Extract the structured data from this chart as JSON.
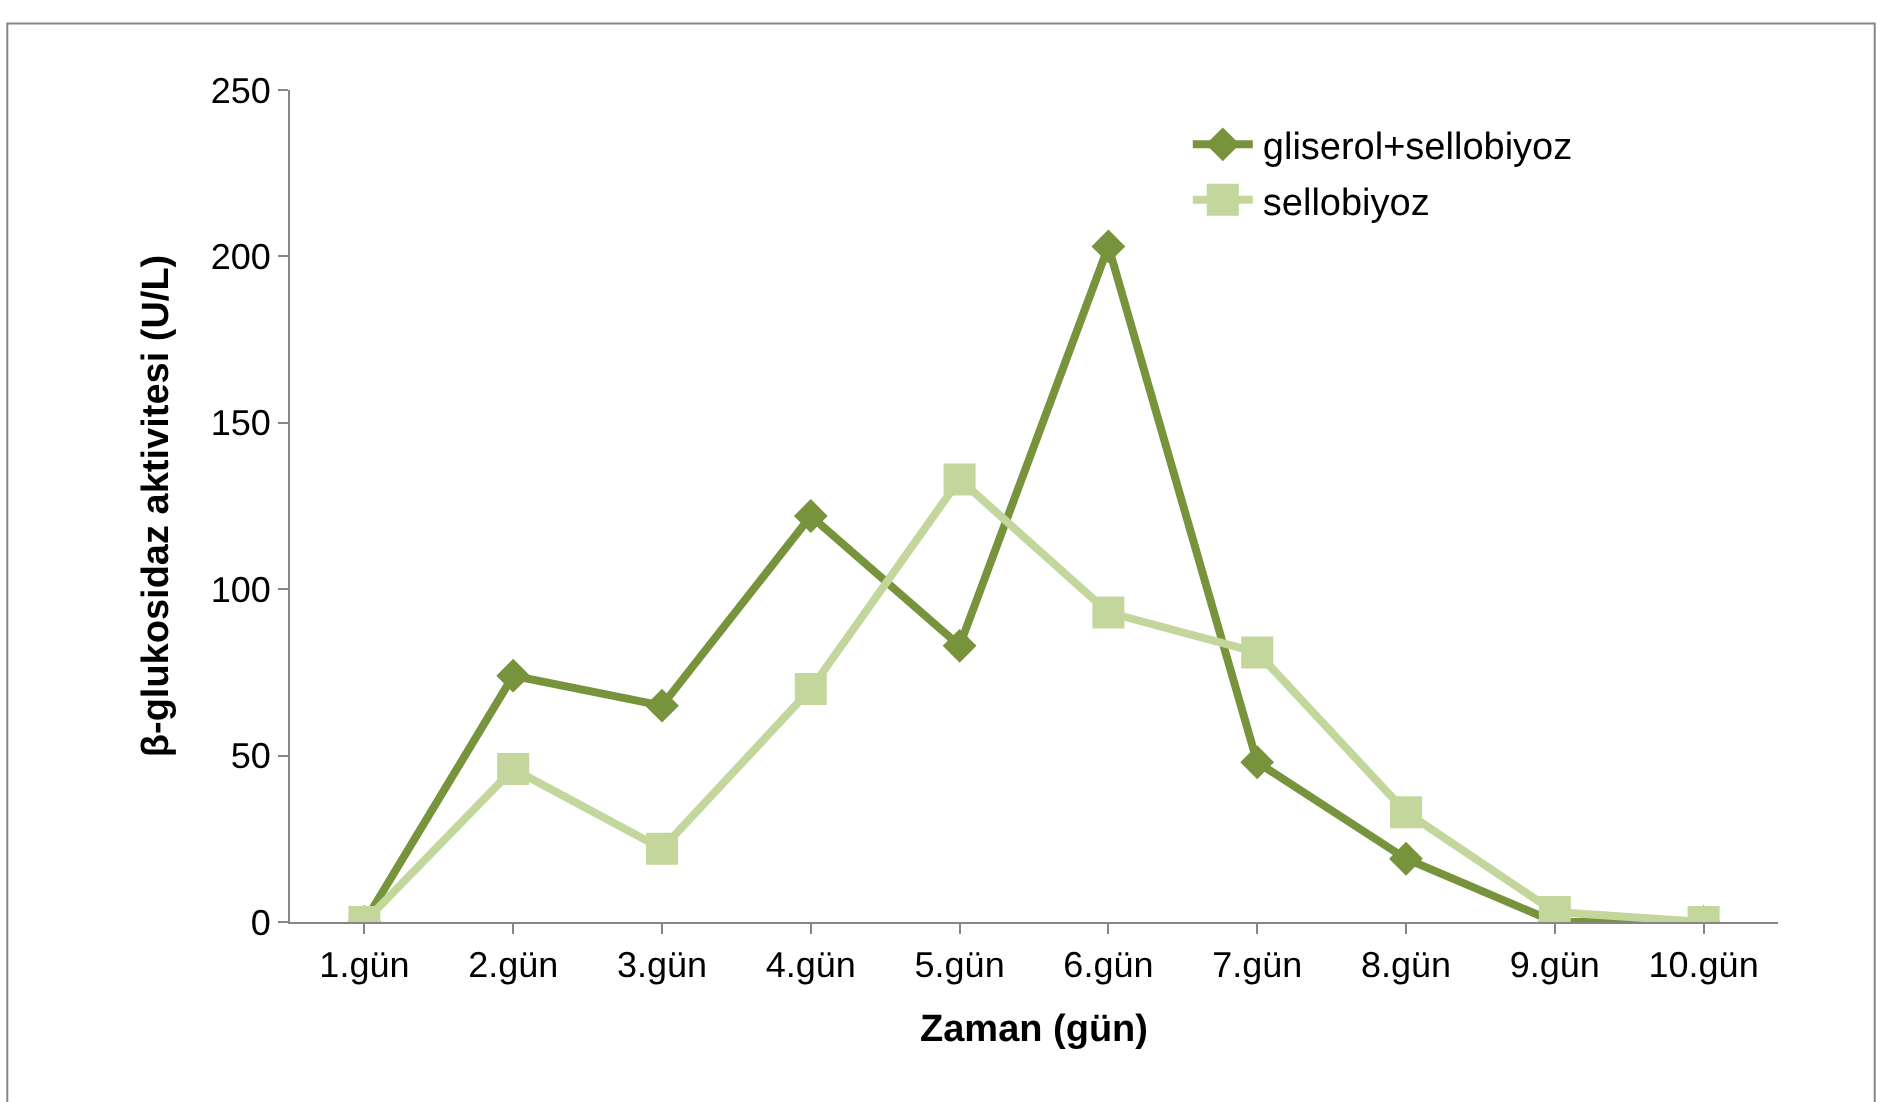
{
  "chart_data": {
    "type": "line",
    "xlabel": "Zaman (gün)",
    "ylabel": "β-glukosidaz aktivitesi (U/L)",
    "categories": [
      "1.gün",
      "2.gün",
      "3.gün",
      "4.gün",
      "5.gün",
      "6.gün",
      "7.gün",
      "8.gün",
      "9.gün",
      "10.gün"
    ],
    "series": [
      {
        "name": "gliserol+sellobiyoz",
        "color": "#77933c",
        "marker": "diamond",
        "values": [
          0,
          74,
          65,
          122,
          83,
          203,
          48,
          19,
          0,
          0
        ]
      },
      {
        "name": "sellobiyoz",
        "color": "#c3d69b",
        "marker": "square",
        "values": [
          0,
          46,
          22,
          70,
          133,
          93,
          81,
          33,
          3,
          0
        ]
      }
    ],
    "ylim": [
      0,
      250
    ],
    "yticks": [
      0,
      50,
      100,
      150,
      200,
      250
    ],
    "legend": "top right",
    "line_style": "solid"
  }
}
